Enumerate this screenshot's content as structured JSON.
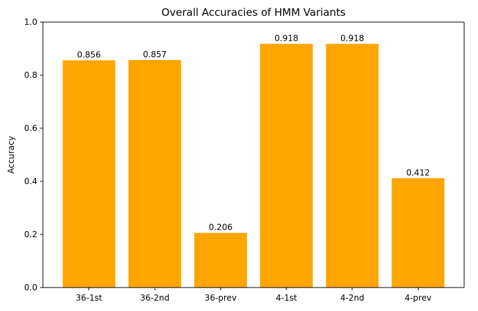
{
  "chart_data": {
    "type": "bar",
    "title": "Overall Accuracies of HMM Variants",
    "xlabel": "",
    "ylabel": "Accuracy",
    "categories": [
      "36-1st",
      "36-2nd",
      "36-prev",
      "4-1st",
      "4-2nd",
      "4-prev"
    ],
    "values": [
      0.856,
      0.857,
      0.206,
      0.918,
      0.918,
      0.412
    ],
    "data_labels": [
      "0.856",
      "0.857",
      "0.206",
      "0.918",
      "0.918",
      "0.412"
    ],
    "y_ticks": [
      0.0,
      0.2,
      0.4,
      0.6,
      0.8,
      1.0
    ],
    "y_tick_labels": [
      "0.0",
      "0.2",
      "0.4",
      "0.6",
      "0.8",
      "1.0"
    ],
    "ylim": [
      0,
      1.0
    ],
    "grid": false,
    "legend": "none",
    "bar_color": "#ffa500"
  }
}
